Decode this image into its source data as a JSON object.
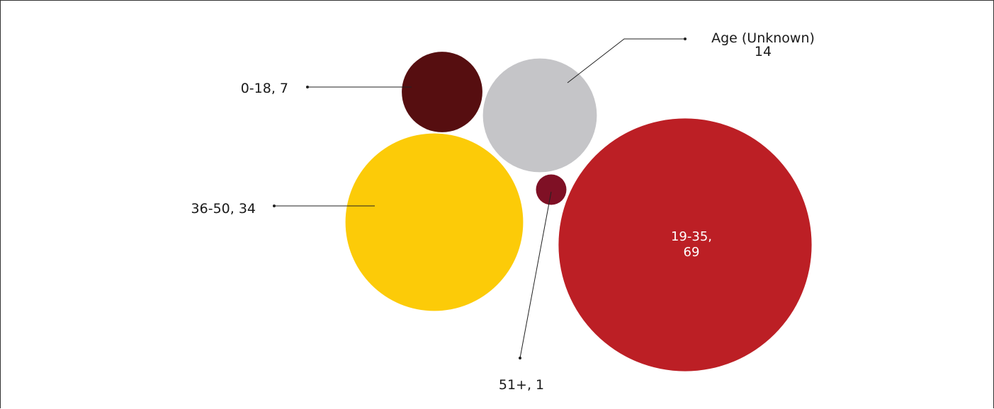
{
  "chart_data": {
    "type": "bubble",
    "title": "",
    "legend": "none",
    "bubbles": [
      {
        "category": "0-18",
        "value": 7,
        "label_line1": "0-18, 7",
        "label_line2": "",
        "color": "#560E10"
      },
      {
        "category": "Age (Unknown)",
        "value": 14,
        "label_line1": "Age (Unknown)",
        "label_line2": "14",
        "color": "#C5C5C8"
      },
      {
        "category": "36-50",
        "value": 34,
        "label_line1": "36-50, 34",
        "label_line2": "",
        "color": "#FCCB08"
      },
      {
        "category": "51+",
        "value": 1,
        "label_line1": "51+, 1",
        "label_line2": "",
        "color": "#7F1025"
      },
      {
        "category": "19-35",
        "value": 69,
        "label_line1": "19-35,",
        "label_line2": "69",
        "color": "#BC1F25"
      }
    ]
  }
}
